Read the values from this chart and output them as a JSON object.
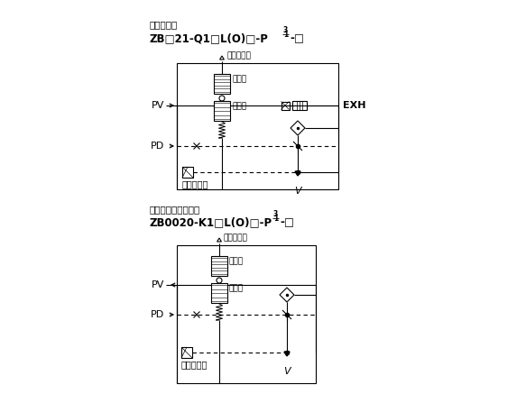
{
  "bg_color": "#ffffff",
  "text_color": "#000000",
  "line_color": "#000000",
  "fig_width": 5.83,
  "fig_height": 4.37,
  "top_title1": "エジェクタ",
  "top_title2": "ZB□21-Q1□L(O)□-P",
  "top_title2_frac_num": "1",
  "top_title2_frac_den": "3",
  "top_title2_end": "-□",
  "bottom_title1": "真空ポンプシステム",
  "bottom_title2": "ZB0020-K1□L(O)□-P",
  "bottom_title2_frac_num": "1",
  "bottom_title2_frac_den": "3",
  "bottom_title2_end": "-□",
  "label_PV": "PV",
  "label_PD": "PD",
  "label_EXH": "EXH",
  "label_V": "V",
  "label_pressure_sensor": "圧力センサ",
  "label_atm": "大気開放口",
  "label_supply_valve": "供給弁",
  "label_break_valve": "破壊弁"
}
